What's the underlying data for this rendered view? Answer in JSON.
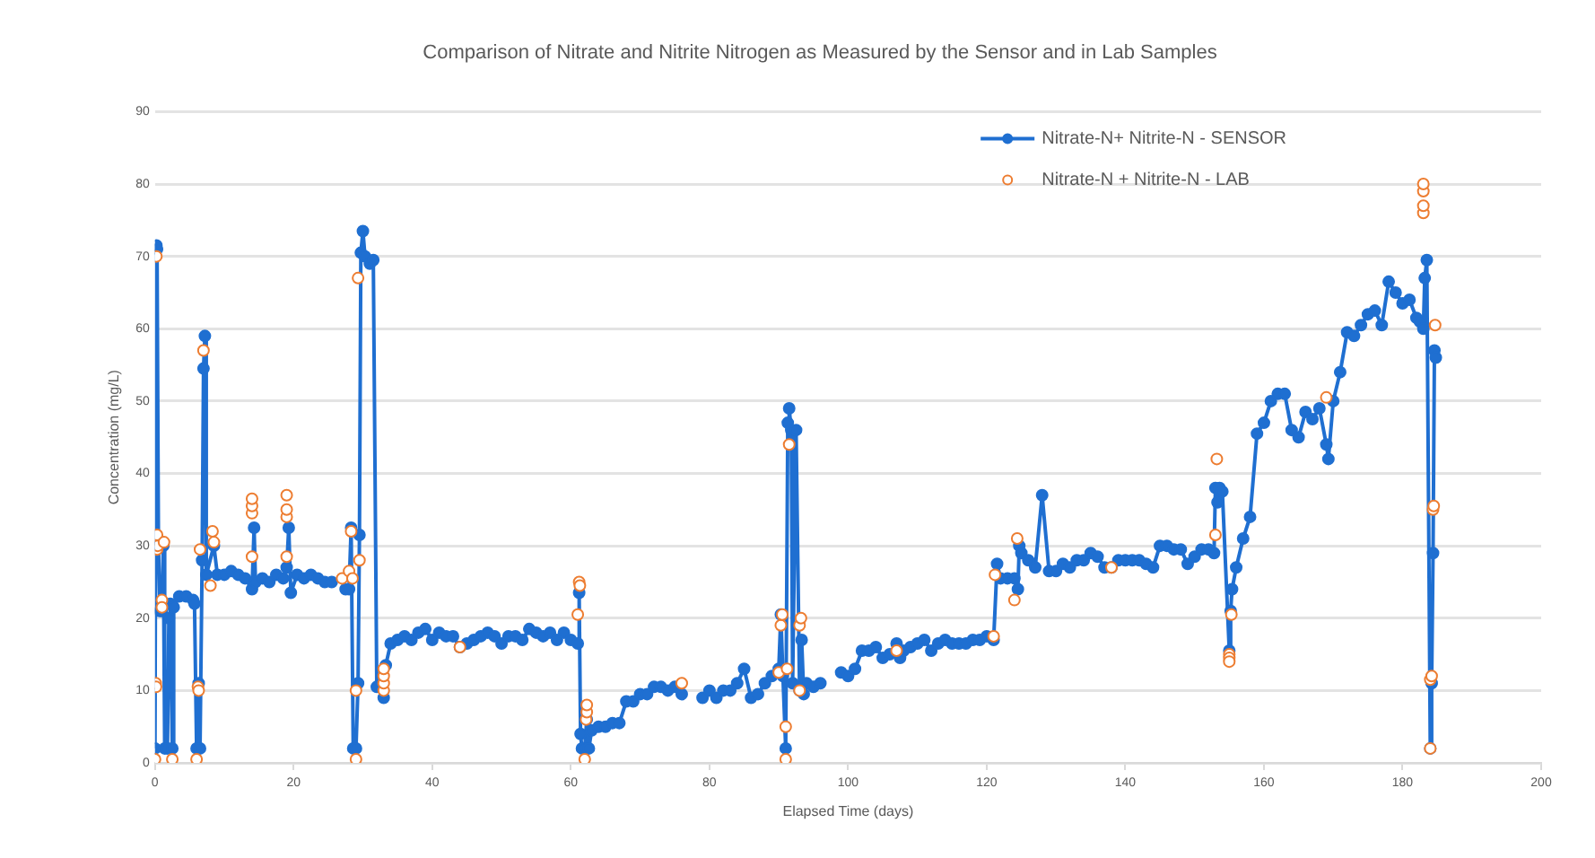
{
  "chart_data": {
    "type": "line",
    "title": "Comparison of Nitrate and Nitrite Nitrogen as Measured by the Sensor and in Lab Samples",
    "xlabel": "Elapsed Time (days)",
    "ylabel": "Concentration (mg/L)",
    "xlim": [
      0,
      200
    ],
    "xticks": [
      0,
      20,
      40,
      60,
      80,
      100,
      120,
      140,
      160,
      180,
      200
    ],
    "ylim": [
      0,
      90
    ],
    "yticks": [
      0,
      10,
      20,
      30,
      40,
      50,
      60,
      70,
      80,
      90
    ],
    "grid": "y",
    "legend": "top right",
    "marker": "circle",
    "series": [
      {
        "name": "Nitrate-N+ Nitrite-N - SENSOR",
        "color": "#1f6fd1",
        "x": [
          0,
          0.2,
          0.3,
          0.5,
          0.7,
          1,
          1.2,
          1.4,
          1.8,
          2,
          2.2,
          2.5,
          2.7,
          3.5,
          4.5,
          5.5,
          5.7,
          6,
          6.3,
          6.5,
          6.8,
          7,
          7.2,
          7.4,
          8.5,
          9,
          10,
          11,
          12,
          13,
          14,
          14.3,
          14.5,
          15.5,
          16.5,
          17.5,
          18.5,
          19,
          19.3,
          19.6,
          20.5,
          21.5,
          22.5,
          23.5,
          24.5,
          25.5,
          26.5,
          27.5,
          28,
          28.3,
          28.6,
          29,
          29.3,
          29.5,
          29.7,
          30,
          30.3,
          31,
          31.5,
          32,
          33,
          33.3,
          34,
          35,
          36,
          37,
          38,
          39,
          40,
          41,
          42,
          43,
          44,
          45,
          46,
          47,
          48,
          49,
          50,
          51,
          52,
          53,
          54,
          55,
          56,
          57,
          58,
          59,
          60,
          61,
          61.2,
          61.4,
          61.6,
          62,
          62.3,
          62.6,
          63,
          64,
          65,
          66,
          67,
          68,
          69,
          70,
          71,
          72,
          73,
          74,
          75,
          76,
          77.5,
          79,
          80,
          81,
          82,
          83,
          84,
          85,
          86,
          87,
          88,
          89,
          90,
          90.3,
          90.6,
          91,
          91.3,
          91.5,
          91.8,
          92,
          92.5,
          93,
          93.3,
          93.6,
          94,
          95,
          96,
          97.5,
          99,
          100,
          101,
          102,
          103,
          104,
          105,
          106,
          107,
          107.5,
          108,
          109,
          110,
          111,
          112,
          113,
          114,
          115,
          116,
          117,
          118,
          119,
          120,
          121,
          121.5,
          122,
          123,
          124,
          124.5,
          124.7,
          125,
          126,
          127,
          128,
          129,
          130,
          131,
          132,
          133,
          134,
          135,
          136,
          137,
          138,
          139,
          140,
          141,
          142,
          143,
          144,
          145,
          146,
          147,
          148,
          149,
          150,
          151,
          152,
          152.8,
          153,
          153.3,
          153.6,
          154,
          155,
          155.2,
          155.4,
          156,
          157,
          158,
          159,
          160,
          161,
          162,
          163,
          164,
          165,
          166,
          167,
          168,
          169,
          169.3,
          170,
          171,
          172,
          173,
          174,
          175,
          176,
          177,
          178,
          179,
          180,
          181,
          182,
          182.5,
          183,
          183.2,
          183.5,
          184,
          184.2,
          184.4,
          184.6,
          184.8
        ],
        "values": [
          2,
          71.5,
          71,
          30,
          21,
          21,
          30,
          2,
          2,
          20,
          22,
          2,
          21.5,
          23,
          23,
          22.5,
          22,
          2,
          11,
          2,
          28,
          54.5,
          59,
          26,
          30,
          26,
          26,
          26.5,
          26,
          25.5,
          24,
          32.5,
          25,
          25.5,
          25,
          26,
          25.5,
          27,
          32.5,
          23.5,
          26,
          25.5,
          26,
          25.5,
          25,
          25,
          null,
          24,
          24,
          32.5,
          2,
          2,
          11,
          31.5,
          70.5,
          73.5,
          70,
          69,
          69.5,
          10.5,
          9,
          13.5,
          16.5,
          17,
          17.5,
          17,
          18,
          18.5,
          17,
          18,
          17.5,
          17.5,
          16,
          16.5,
          17,
          17.5,
          18,
          17.5,
          16.5,
          17.5,
          17.5,
          17,
          18.5,
          18,
          17.5,
          18,
          17,
          18,
          17,
          16.5,
          23.5,
          4,
          2,
          2,
          6,
          2,
          4.5,
          5,
          5,
          5.5,
          5.5,
          8.5,
          8.5,
          9.5,
          9.5,
          10.5,
          10.5,
          10,
          10.5,
          9.5,
          null,
          9,
          10,
          9,
          10,
          10,
          11,
          13,
          9,
          9.5,
          11,
          12,
          13,
          20.5,
          12,
          2,
          47,
          49,
          46,
          11,
          46,
          10,
          17,
          9.5,
          11,
          10.5,
          11,
          null,
          12.5,
          12,
          13,
          15.5,
          15.5,
          16,
          14.5,
          15,
          16.5,
          14.5,
          15.5,
          16,
          16.5,
          17,
          15.5,
          16.5,
          17,
          16.5,
          16.5,
          16.5,
          17,
          17,
          17.5,
          17,
          27.5,
          25.5,
          25.5,
          25.5,
          24,
          30,
          29,
          28,
          27,
          37,
          26.5,
          26.5,
          27.5,
          27,
          28,
          28,
          29,
          28.5,
          27,
          27,
          28,
          28,
          28,
          28,
          27.5,
          27,
          30,
          30,
          29.5,
          29.5,
          27.5,
          28.5,
          29.5,
          29.5,
          29,
          38,
          36,
          38,
          37.5,
          15.5,
          21,
          24,
          27,
          31,
          34,
          45.5,
          47,
          50,
          51,
          51,
          46,
          45,
          48.5,
          47.5,
          49,
          44,
          42,
          50,
          54,
          59.5,
          59,
          60.5,
          62,
          62.5,
          60.5,
          66.5,
          65,
          63.5,
          64,
          61.5,
          61,
          60,
          67,
          69.5,
          2,
          11,
          29,
          57,
          56
        ]
      },
      {
        "name": "Nitrate-N + Nitrite-N - LAB",
        "color": "#ed7d31",
        "type": "scatter",
        "x": [
          0,
          0.1,
          0.15,
          0.2,
          0.3,
          0.3,
          0.4,
          1,
          1,
          1.3,
          2.5,
          6,
          6.2,
          6.3,
          6.5,
          7,
          8,
          8.3,
          8.5,
          14,
          14,
          14,
          14,
          19,
          19,
          19,
          19,
          27,
          28,
          28.3,
          28.5,
          29,
          29,
          29.3,
          29.5,
          33,
          33,
          33,
          33,
          44,
          61,
          61.2,
          61.3,
          62,
          62.2,
          62.3,
          62.3,
          76,
          90,
          90.3,
          90.5,
          91,
          91,
          91.2,
          91.5,
          93,
          93,
          93.2,
          107,
          121,
          121.2,
          124,
          124.4,
          138,
          153,
          153.2,
          155,
          155,
          155,
          155.3,
          169,
          183,
          183,
          183,
          183,
          184,
          184,
          184.2,
          184.4,
          184.5,
          184.7
        ],
        "values": [
          0.5,
          11,
          10.5,
          70,
          29.5,
          31.5,
          30,
          22.5,
          21.5,
          30.5,
          0.5,
          0.5,
          10.5,
          10,
          29.5,
          57,
          24.5,
          32,
          30.5,
          28.5,
          34.5,
          35.5,
          36.5,
          28.5,
          34,
          35,
          37,
          25.5,
          26.5,
          32,
          25.5,
          10,
          0.5,
          67,
          28,
          10,
          11,
          12,
          13,
          16,
          20.5,
          25,
          24.5,
          0.5,
          6,
          7,
          8,
          11,
          12.5,
          19,
          20.5,
          0.5,
          5,
          13,
          44,
          10,
          19,
          20,
          15.5,
          17.5,
          26,
          22.5,
          31,
          27,
          31.5,
          42,
          15,
          14.5,
          14,
          20.5,
          50.5,
          76,
          77,
          79,
          80,
          2,
          11.5,
          12,
          35,
          35.5,
          60.5
        ]
      }
    ]
  }
}
